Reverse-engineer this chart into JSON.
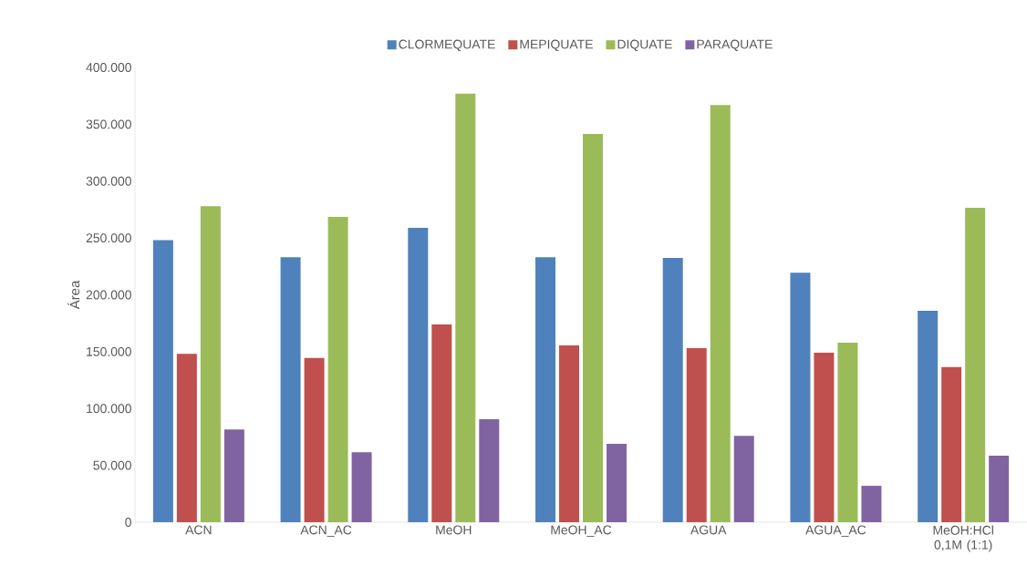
{
  "chart_data": {
    "type": "bar",
    "ylabel": "Área",
    "legend": "top",
    "grid": false,
    "categories": [
      "ACN",
      "ACN_AC",
      "MeOH",
      "MeOH_AC",
      "AGUA",
      "AGUA_AC",
      "MeOH:HCl 0,1M (1:1)"
    ],
    "ylim": [
      0,
      400000
    ],
    "yticks": [
      {
        "value": 0,
        "label": "0"
      },
      {
        "value": 50000,
        "label": "50.000"
      },
      {
        "value": 100000,
        "label": "100.000"
      },
      {
        "value": 150000,
        "label": "150.000"
      },
      {
        "value": 200000,
        "label": "200.000"
      },
      {
        "value": 250000,
        "label": "250.000"
      },
      {
        "value": 300000,
        "label": "300.000"
      },
      {
        "value": 350000,
        "label": "350.000"
      },
      {
        "value": 400000,
        "label": "400.000"
      }
    ],
    "series": [
      {
        "name": "CLORMEQUATE",
        "color": "#4f81bd",
        "values": [
          248000,
          233000,
          259000,
          233000,
          232500,
          219500,
          186000
        ]
      },
      {
        "name": "MEPIQUATE",
        "color": "#c0504d",
        "values": [
          148000,
          144500,
          174000,
          155500,
          153000,
          149000,
          136500
        ]
      },
      {
        "name": "DIQUATE",
        "color": "#9bbb59",
        "values": [
          278000,
          268500,
          377000,
          341500,
          367000,
          158000,
          276500
        ]
      },
      {
        "name": "PARAQUATE",
        "color": "#8064a2",
        "values": [
          81500,
          61500,
          90500,
          69000,
          76000,
          32000,
          58500
        ]
      }
    ]
  }
}
